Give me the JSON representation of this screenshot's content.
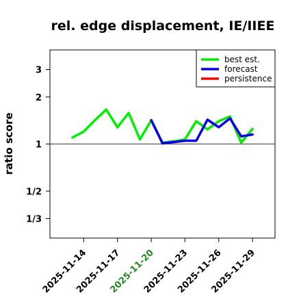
{
  "chart_data": {
    "type": "line",
    "title": "rel. edge displacement, IE/IIEE",
    "ylabel": "ratio score",
    "xlabel": "",
    "yscale": "log",
    "ylim": [
      0.25,
      4.0
    ],
    "xlim": [
      "2025-11-11",
      "2025-12-01"
    ],
    "y_ticks": [
      {
        "value": 0.333,
        "label": "1/3"
      },
      {
        "value": 0.5,
        "label": "1/2"
      },
      {
        "value": 1,
        "label": "1"
      },
      {
        "value": 2,
        "label": "2"
      },
      {
        "value": 3,
        "label": "3"
      }
    ],
    "x_ticks": [
      {
        "date": "2025-11-14",
        "label": "2025-11-14",
        "color": "#000000"
      },
      {
        "date": "2025-11-17",
        "label": "2025-11-17",
        "color": "#000000"
      },
      {
        "date": "2025-11-20",
        "label": "2025-11-20",
        "color": "#228b22"
      },
      {
        "date": "2025-11-23",
        "label": "2025-11-23",
        "color": "#000000"
      },
      {
        "date": "2025-11-26",
        "label": "2025-11-26",
        "color": "#000000"
      },
      {
        "date": "2025-11-29",
        "label": "2025-11-29",
        "color": "#000000"
      }
    ],
    "reference_line": 1,
    "legend_position": "top-right",
    "series": [
      {
        "name": "best est.",
        "color": "#00ee00",
        "points": [
          [
            "2025-11-13",
            1.1
          ],
          [
            "2025-11-14",
            1.2
          ],
          [
            "2025-11-15",
            1.42
          ],
          [
            "2025-11-16",
            1.66
          ],
          [
            "2025-11-17",
            1.28
          ],
          [
            "2025-11-18",
            1.58
          ],
          [
            "2025-11-19",
            1.07
          ],
          [
            "2025-11-20",
            1.42
          ],
          [
            "2025-11-21",
            1.02
          ],
          [
            "2025-11-22",
            1.04
          ],
          [
            "2025-11-23",
            1.07
          ],
          [
            "2025-11-24",
            1.4
          ],
          [
            "2025-11-25",
            1.24
          ],
          [
            "2025-11-26",
            1.4
          ],
          [
            "2025-11-27",
            1.5
          ],
          [
            "2025-11-28",
            1.02
          ],
          [
            "2025-11-29",
            1.25
          ]
        ]
      },
      {
        "name": "forecast",
        "color": "#0000ee",
        "points": [
          [
            "2025-11-20",
            1.42
          ],
          [
            "2025-11-21",
            1.01
          ],
          [
            "2025-11-22",
            1.03
          ],
          [
            "2025-11-23",
            1.05
          ],
          [
            "2025-11-24",
            1.05
          ],
          [
            "2025-11-25",
            1.43
          ],
          [
            "2025-11-26",
            1.28
          ],
          [
            "2025-11-27",
            1.46
          ],
          [
            "2025-11-28",
            1.12
          ],
          [
            "2025-11-29",
            1.15
          ]
        ]
      },
      {
        "name": "persistence",
        "color": "#ff0000",
        "points": []
      }
    ]
  }
}
